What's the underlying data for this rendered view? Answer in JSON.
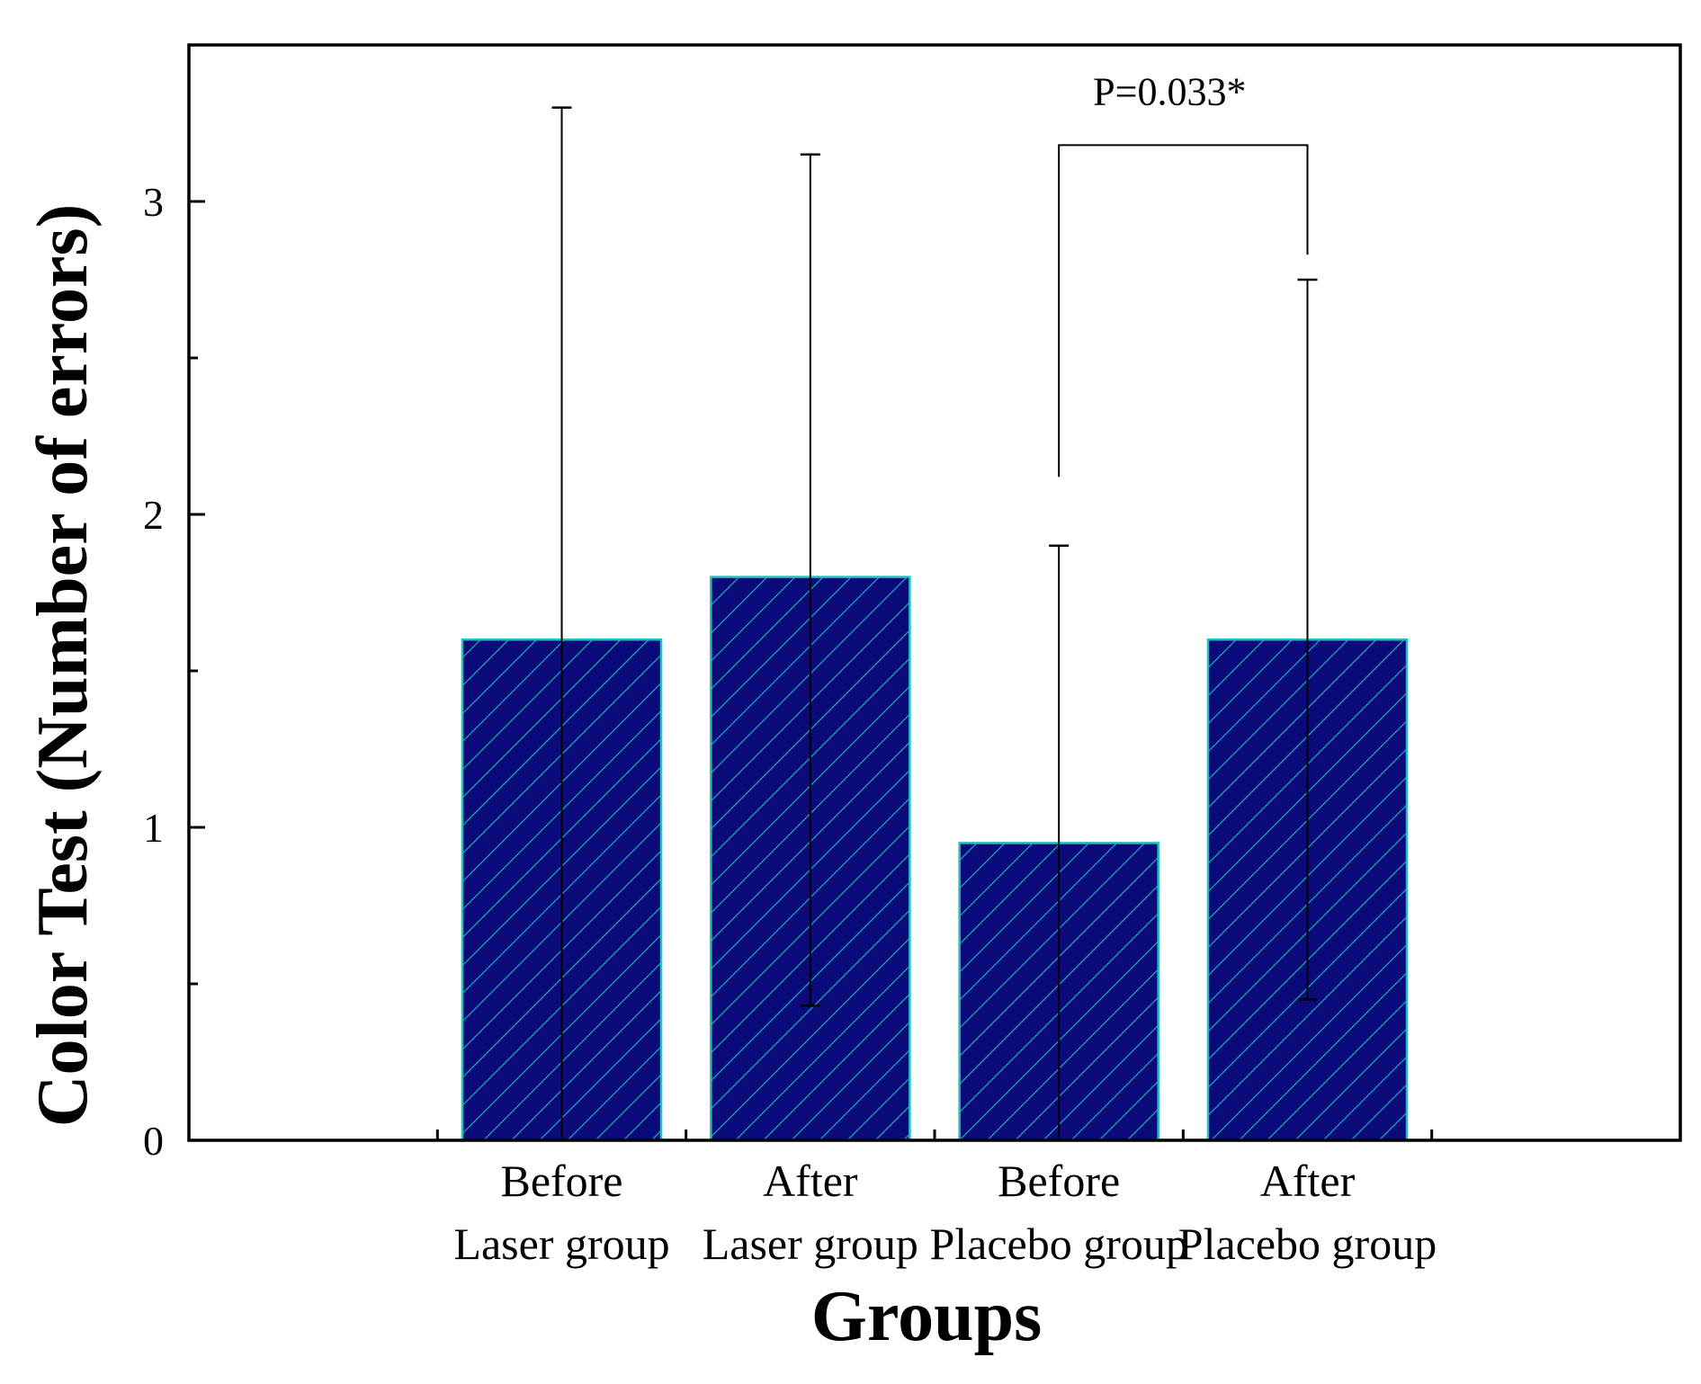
{
  "chart_data": {
    "type": "bar",
    "title": "",
    "xlabel": "Groups",
    "ylabel": "Color Test (Number of errors)",
    "ylim": [
      0,
      3.5
    ],
    "yticks": [
      0,
      1,
      2,
      3
    ],
    "grid": false,
    "categories": [
      {
        "line1": "Before",
        "line2": "Laser group"
      },
      {
        "line1": "After",
        "line2": "Laser group"
      },
      {
        "line1": "Before",
        "line2": "Placebo group"
      },
      {
        "line1": "After",
        "line2": "Placebo group"
      }
    ],
    "values": [
      1.6,
      1.8,
      0.95,
      1.6
    ],
    "error_upper": [
      3.3,
      3.15,
      1.9,
      2.75
    ],
    "error_lower": [
      0,
      0.43,
      0,
      0.45
    ],
    "bar_fill": "#0a0a7a",
    "bar_hatch": "#1e8fa8",
    "bar_edge": "#22c0c0",
    "annotation": {
      "text": "P=0.033*",
      "from_category": 2,
      "to_category": 3,
      "y": 3.18,
      "left_drop_to": 2.12,
      "right_drop_to": 2.83
    }
  }
}
